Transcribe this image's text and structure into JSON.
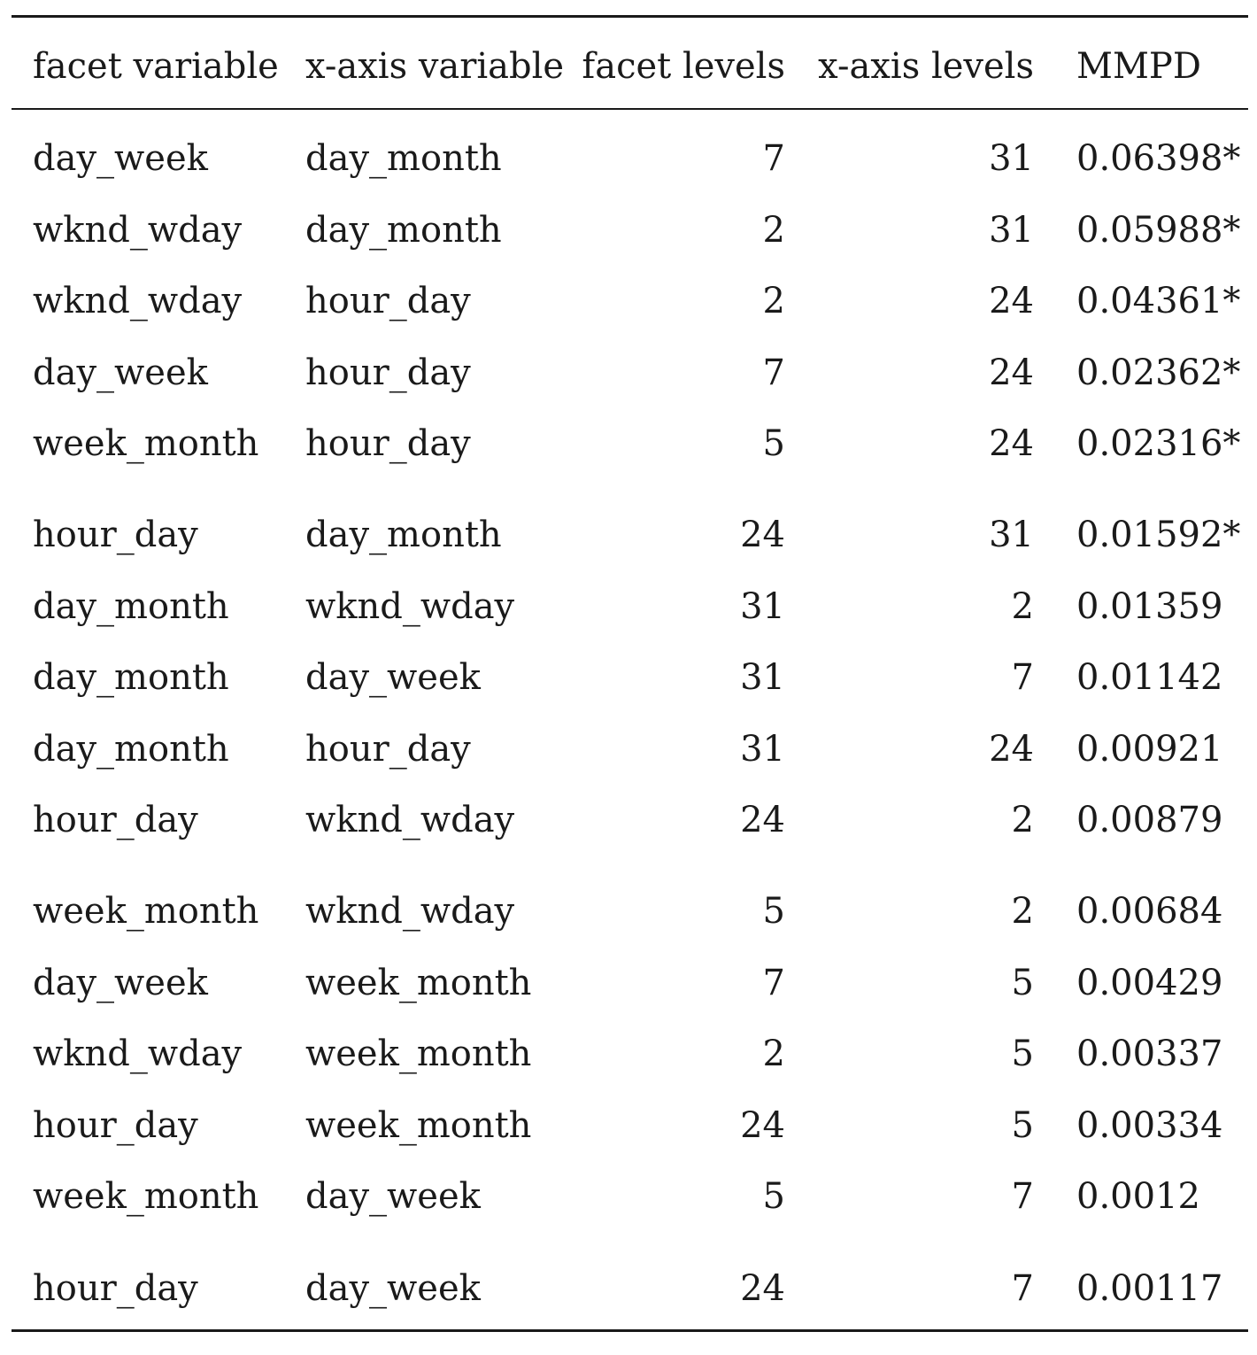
{
  "table": {
    "headers": [
      "facet variable",
      "x-axis variable",
      "facet levels",
      "x-axis levels",
      "MMPD"
    ],
    "rows": [
      [
        "day_week",
        "day_month",
        "7",
        "31",
        "0.06398*"
      ],
      [
        "wknd_wday",
        "day_month",
        "2",
        "31",
        "0.05988*"
      ],
      [
        "wknd_wday",
        "hour_day",
        "2",
        "24",
        "0.04361*"
      ],
      [
        "day_week",
        "hour_day",
        "7",
        "24",
        "0.02362*"
      ],
      [
        "week_month",
        "hour_day",
        "5",
        "24",
        "0.02316*"
      ],
      [
        "hour_day",
        "day_month",
        "24",
        "31",
        "0.01592*"
      ],
      [
        "day_month",
        "wknd_wday",
        "31",
        "2",
        "0.01359"
      ],
      [
        "day_month",
        "day_week",
        "31",
        "7",
        "0.01142"
      ],
      [
        "day_month",
        "hour_day",
        "31",
        "24",
        "0.00921"
      ],
      [
        "hour_day",
        "wknd_wday",
        "24",
        "2",
        "0.00879"
      ],
      [
        "week_month",
        "wknd_wday",
        "5",
        "2",
        "0.00684"
      ],
      [
        "day_week",
        "week_month",
        "7",
        "5",
        "0.00429"
      ],
      [
        "wknd_wday",
        "week_month",
        "2",
        "5",
        "0.00337"
      ],
      [
        "hour_day",
        "week_month",
        "24",
        "5",
        "0.00334"
      ],
      [
        "week_month",
        "day_week",
        "5",
        "7",
        "0.0012"
      ],
      [
        "hour_day",
        "day_week",
        "24",
        "7",
        "0.00117"
      ]
    ]
  }
}
